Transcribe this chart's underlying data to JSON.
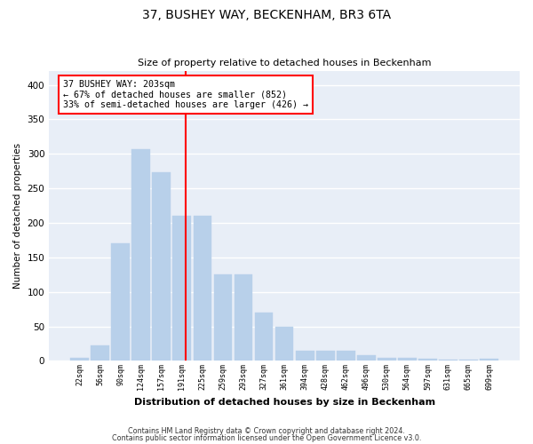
{
  "title": "37, BUSHEY WAY, BECKENHAM, BR3 6TA",
  "subtitle": "Size of property relative to detached houses in Beckenham",
  "xlabel": "Distribution of detached houses by size in Beckenham",
  "ylabel": "Number of detached properties",
  "bar_color": "#b8d0ea",
  "background_color": "#e8eef7",
  "grid_color": "#ffffff",
  "categories": [
    "22sqm",
    "56sqm",
    "90sqm",
    "124sqm",
    "157sqm",
    "191sqm",
    "225sqm",
    "259sqm",
    "293sqm",
    "327sqm",
    "361sqm",
    "394sqm",
    "428sqm",
    "462sqm",
    "496sqm",
    "530sqm",
    "564sqm",
    "597sqm",
    "631sqm",
    "665sqm",
    "699sqm"
  ],
  "values": [
    5,
    22,
    170,
    307,
    273,
    210,
    210,
    125,
    125,
    70,
    50,
    15,
    15,
    15,
    8,
    5,
    5,
    3,
    2,
    2,
    3
  ],
  "property_label": "37 BUSHEY WAY: 203sqm",
  "annotation_line1": "← 67% of detached houses are smaller (852)",
  "annotation_line2": "33% of semi-detached houses are larger (426) →",
  "vline_x": 5.18,
  "ylim": [
    0,
    420
  ],
  "yticks": [
    0,
    50,
    100,
    150,
    200,
    250,
    300,
    350,
    400
  ],
  "footnote1": "Contains HM Land Registry data © Crown copyright and database right 2024.",
  "footnote2": "Contains public sector information licensed under the Open Government Licence v3.0."
}
